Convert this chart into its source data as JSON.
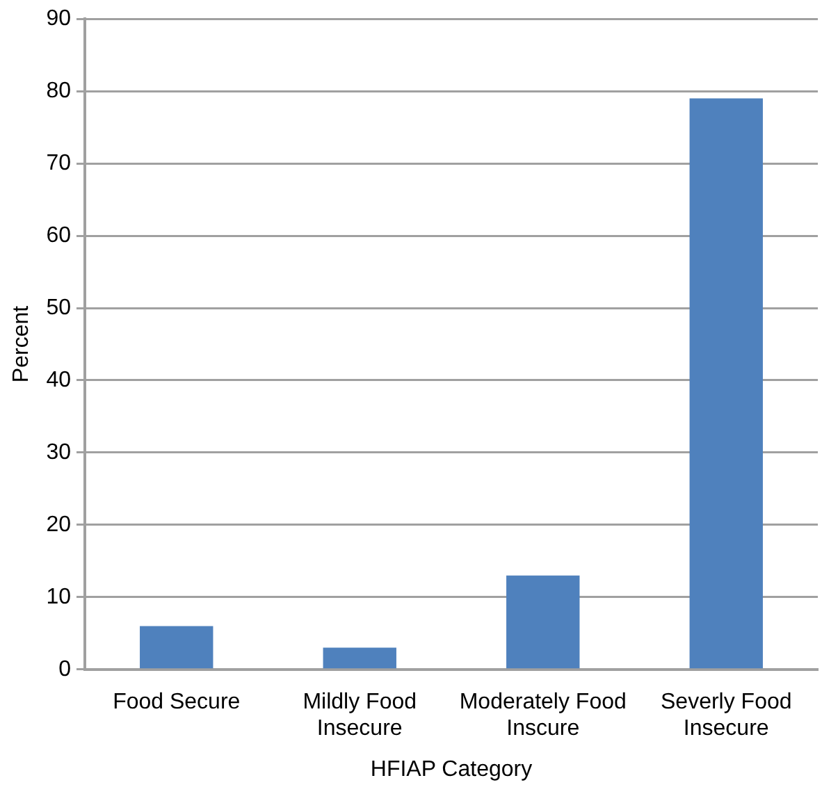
{
  "chart_data": {
    "type": "bar",
    "xlabel": "HFIAP Category",
    "ylabel": "Percent",
    "categories": [
      "Food Secure",
      "Mildly Food Insecure",
      "Moderately Food Inscure",
      "Severly Food Insecure"
    ],
    "values": [
      6,
      3,
      13,
      79
    ],
    "color": "#4f81bd",
    "ylim": [
      0,
      90
    ],
    "yticks": [
      0,
      10,
      20,
      30,
      40,
      50,
      60,
      70,
      80,
      90
    ],
    "grid": "y",
    "legend": false
  }
}
